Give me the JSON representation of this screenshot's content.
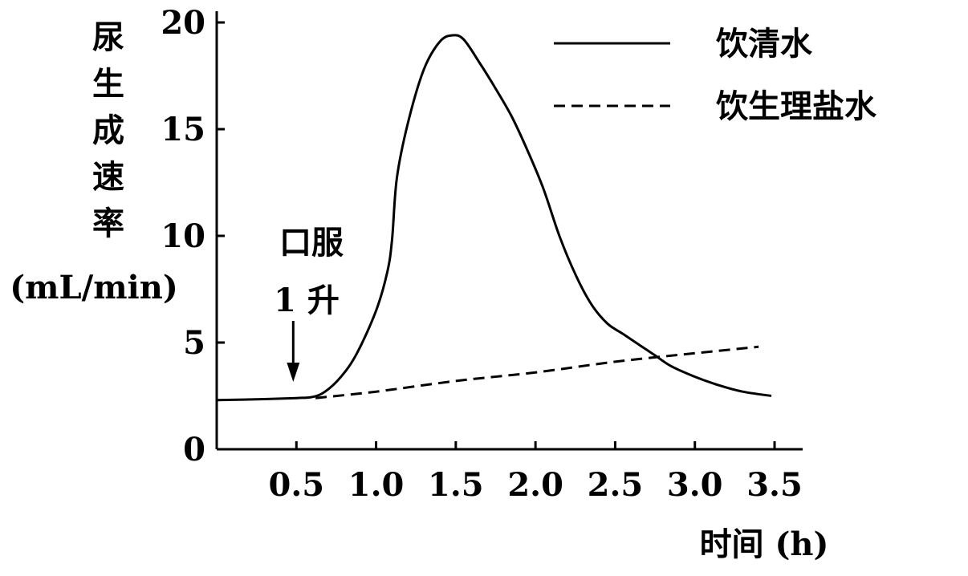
{
  "chart_data": {
    "type": "line",
    "ylabel_chars": [
      "尿",
      "生",
      "成",
      "速",
      "率"
    ],
    "ylabel_unit": "(mL/min)",
    "xlabel": "时间 (h)",
    "xlim": [
      0,
      3.5
    ],
    "ylim": [
      0,
      20
    ],
    "x_ticks": [
      {
        "value": 0.5,
        "label": "0.5"
      },
      {
        "value": 1.0,
        "label": "1.0"
      },
      {
        "value": 1.5,
        "label": "1.5"
      },
      {
        "value": 2.0,
        "label": "2.0"
      },
      {
        "value": 2.5,
        "label": "2.5"
      },
      {
        "value": 3.0,
        "label": "3.0"
      },
      {
        "value": 3.5,
        "label": "3.5"
      }
    ],
    "y_ticks": [
      {
        "value": 0,
        "label": "0"
      },
      {
        "value": 5,
        "label": "5"
      },
      {
        "value": 10,
        "label": "10"
      },
      {
        "value": 15,
        "label": "15"
      },
      {
        "value": 20,
        "label": "20"
      }
    ],
    "series": [
      {
        "name": "饮清水",
        "style": "solid",
        "points": [
          [
            0.0,
            2.3
          ],
          [
            0.3,
            2.35
          ],
          [
            0.5,
            2.4
          ],
          [
            0.6,
            2.45
          ],
          [
            0.68,
            2.7
          ],
          [
            0.78,
            3.4
          ],
          [
            0.88,
            4.5
          ],
          [
            1.0,
            6.5
          ],
          [
            1.07,
            8.3
          ],
          [
            1.1,
            9.8
          ],
          [
            1.13,
            12.7
          ],
          [
            1.2,
            15.3
          ],
          [
            1.3,
            17.8
          ],
          [
            1.4,
            19.1
          ],
          [
            1.48,
            19.4
          ],
          [
            1.55,
            19.2
          ],
          [
            1.65,
            18.1
          ],
          [
            1.75,
            16.9
          ],
          [
            1.85,
            15.6
          ],
          [
            1.95,
            14.0
          ],
          [
            2.05,
            12.2
          ],
          [
            2.15,
            10.0
          ],
          [
            2.25,
            8.2
          ],
          [
            2.35,
            6.8
          ],
          [
            2.45,
            5.9
          ],
          [
            2.55,
            5.4
          ],
          [
            2.65,
            4.9
          ],
          [
            2.75,
            4.4
          ],
          [
            2.85,
            3.9
          ],
          [
            3.0,
            3.4
          ],
          [
            3.15,
            3.0
          ],
          [
            3.3,
            2.7
          ],
          [
            3.48,
            2.5
          ]
        ]
      },
      {
        "name": "饮生理盐水",
        "style": "dashed",
        "points": [
          [
            0.62,
            2.4
          ],
          [
            1.0,
            2.7
          ],
          [
            1.5,
            3.2
          ],
          [
            2.0,
            3.6
          ],
          [
            2.5,
            4.1
          ],
          [
            3.0,
            4.5
          ],
          [
            3.4,
            4.8
          ]
        ]
      }
    ],
    "annotation": {
      "line1": "口服",
      "line2": "1 升",
      "x": 0.48
    },
    "legend_position": "top-right"
  }
}
